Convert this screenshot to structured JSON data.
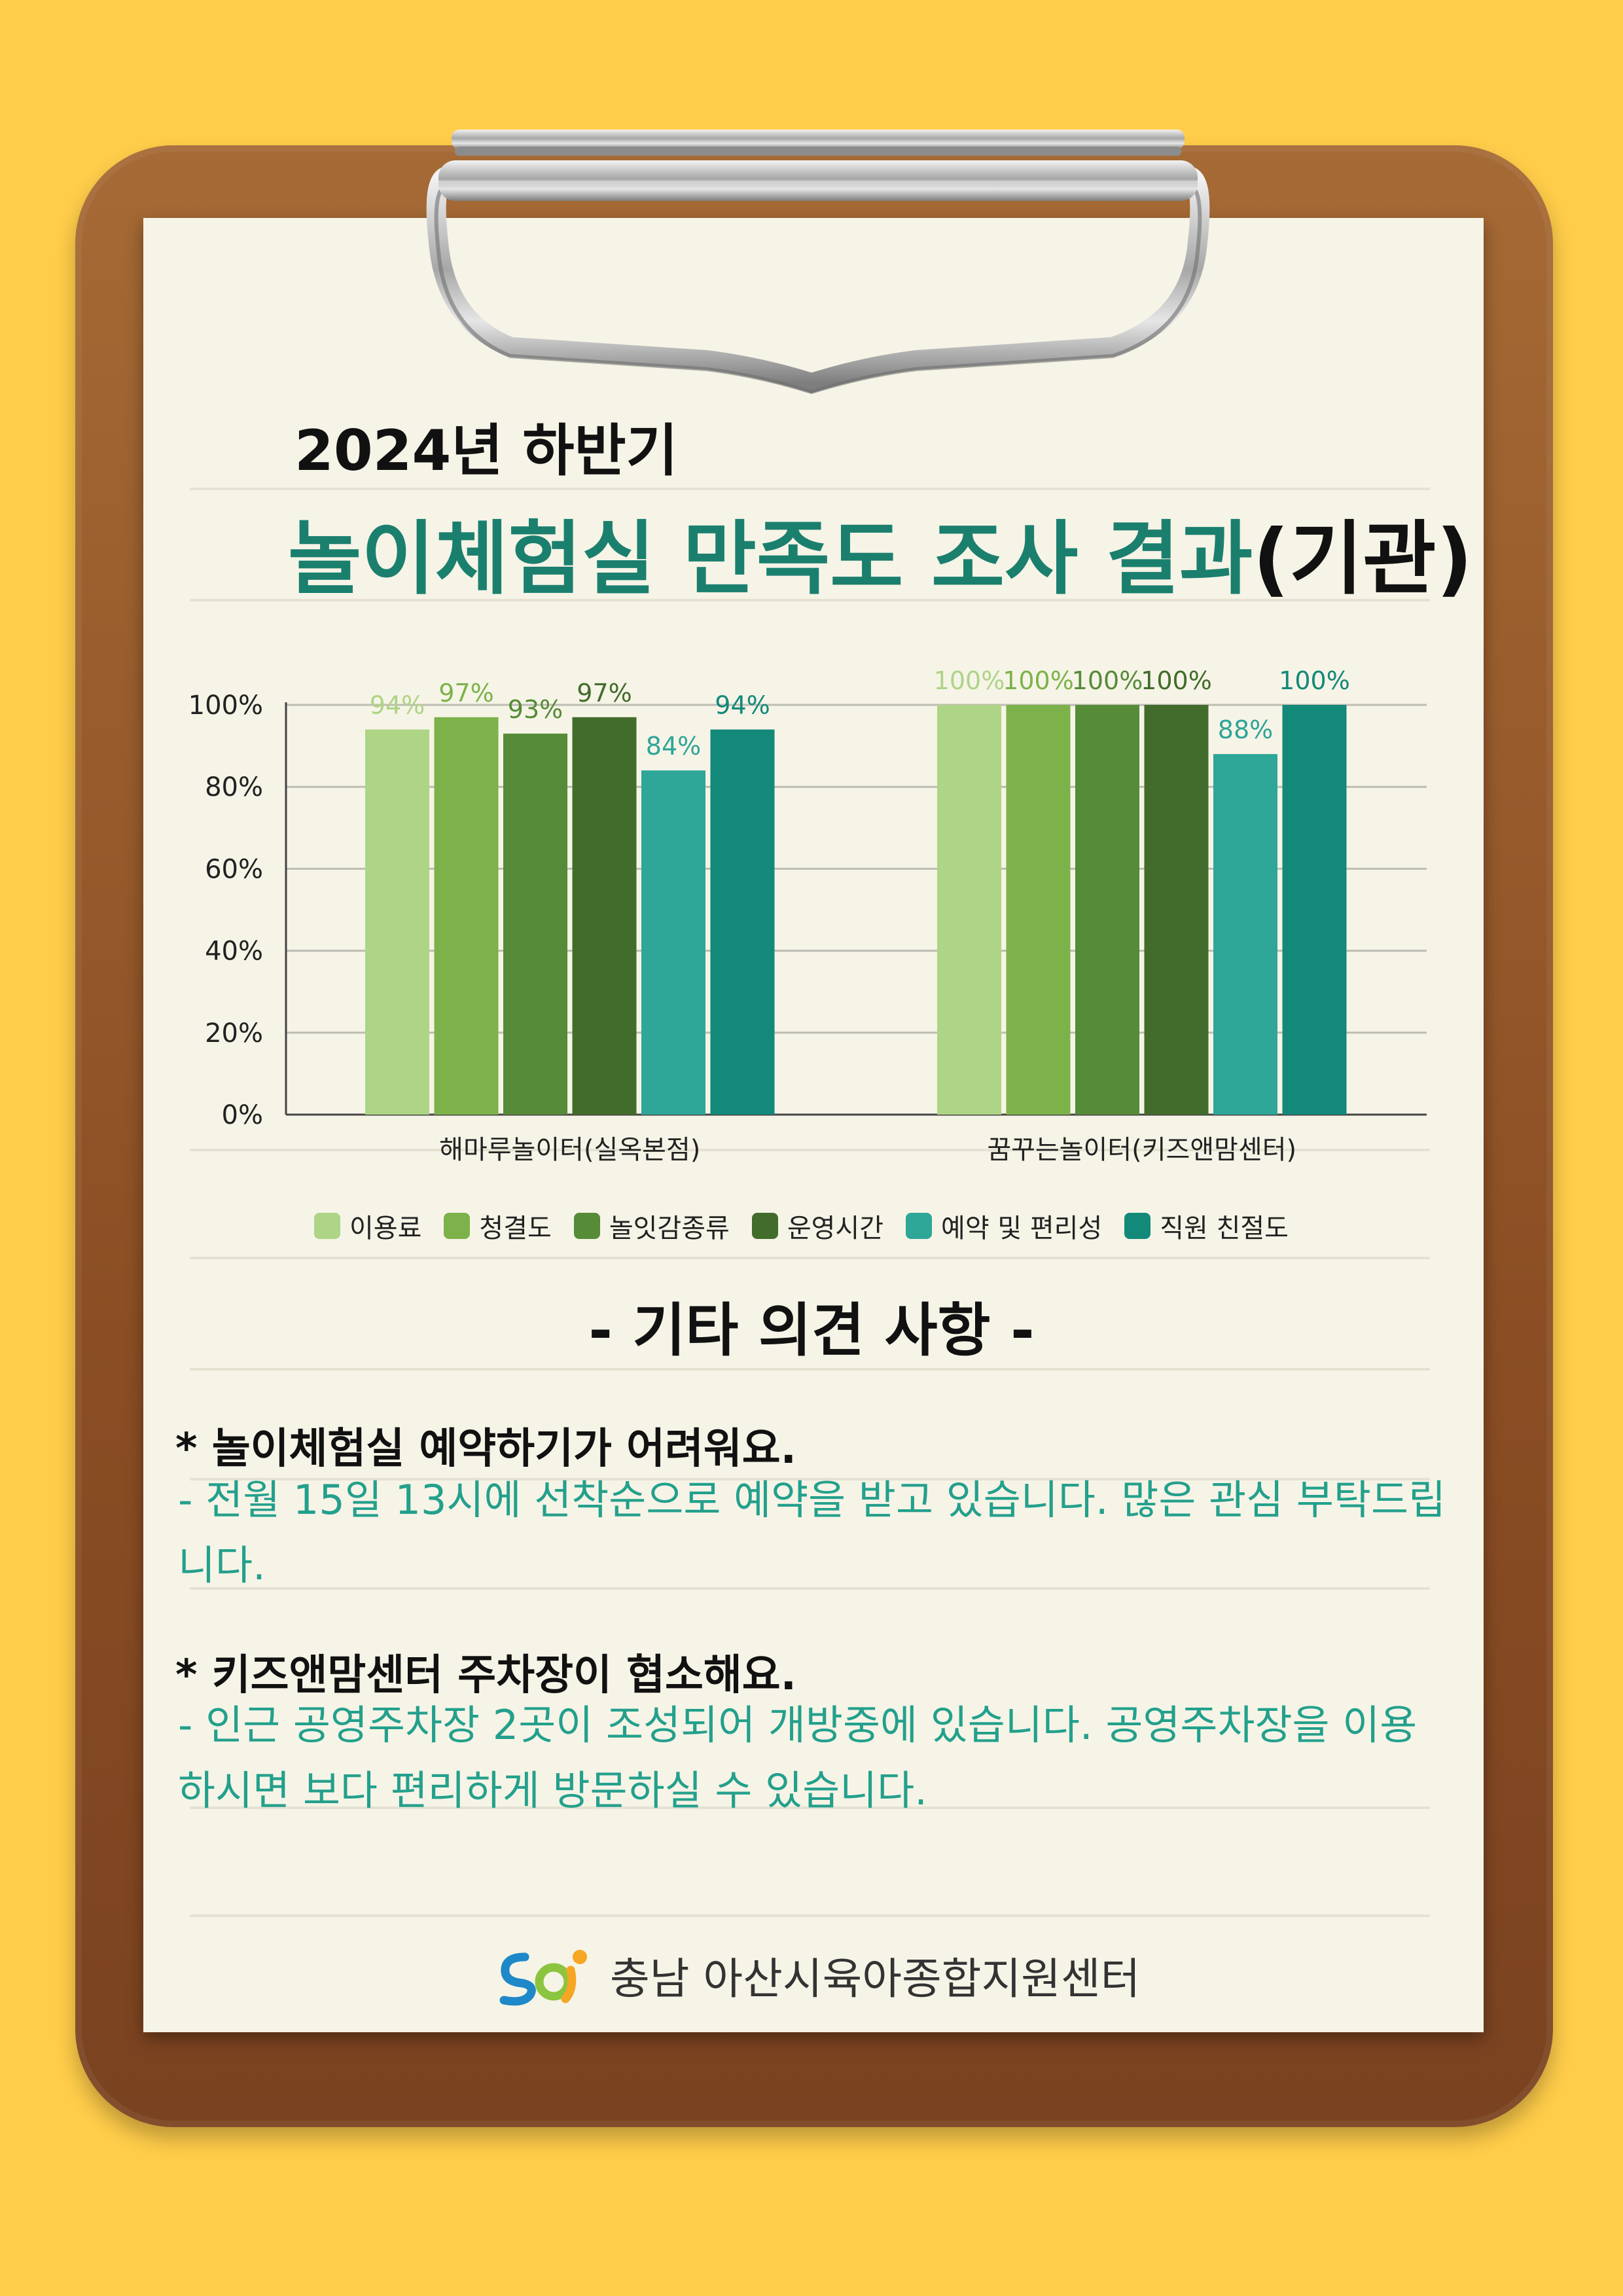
{
  "header": {
    "title_line1": "2024년 하반기",
    "title_main": "놀이체험실 만족도 조사 결과",
    "title_suffix": "(기관)"
  },
  "chart_data": {
    "type": "bar",
    "categories": [
      "해마루놀이터(실옥본점)",
      "꿈꾸는놀이터(키즈앤맘센터)"
    ],
    "series": [
      {
        "name": "이용료",
        "values": [
          94,
          100
        ],
        "color": "#AED486"
      },
      {
        "name": "청결도",
        "values": [
          97,
          100
        ],
        "color": "#7DB24A"
      },
      {
        "name": "놀잇감종류",
        "values": [
          93,
          100
        ],
        "color": "#568B38"
      },
      {
        "name": "운영시간",
        "values": [
          97,
          100
        ],
        "color": "#426C2B"
      },
      {
        "name": "예약 및 편리성",
        "values": [
          84,
          88
        ],
        "color": "#2EA698"
      },
      {
        "name": "직원 친절도",
        "values": [
          94,
          100
        ],
        "color": "#13897A"
      }
    ],
    "data_labels": [
      [
        "94%",
        "97%",
        "93%",
        "97%",
        "84%",
        "94%"
      ],
      [
        "100%",
        "100%",
        "100%",
        "100%",
        "88%",
        "100%"
      ]
    ],
    "y_ticks": [
      "0%",
      "20%",
      "40%",
      "60%",
      "80%",
      "100%"
    ],
    "ylim": [
      0,
      100
    ],
    "grid": true,
    "legend_position": "bottom"
  },
  "opinions": {
    "heading": "- 기타 의견 사항 -",
    "items": [
      {
        "question": "* 놀이체험실 예약하기가 어려워요.",
        "answer": "- 전월 15일 13시에 선착순으로 예약을 받고 있습니다. 많은 관심 부탁드립니다."
      },
      {
        "question": "* 키즈앤맘센터 주차장이 협소해요.",
        "answer": "- 인근 공영주차장 2곳이 조성되어 개방중에 있습니다. 공영주차장을 이용하시면 보다 편리하게 방문하실 수 있습니다."
      }
    ]
  },
  "footer": {
    "org_name": "충남 아산시육아종합지원센터",
    "logo_icon": "center-logo-icon"
  },
  "colors": {
    "background": "#FFCD4A",
    "board": "#8B4E24",
    "paper": "#F6F4E7",
    "title_accent": "#1B7F6E",
    "answer_text": "#23A08C"
  }
}
